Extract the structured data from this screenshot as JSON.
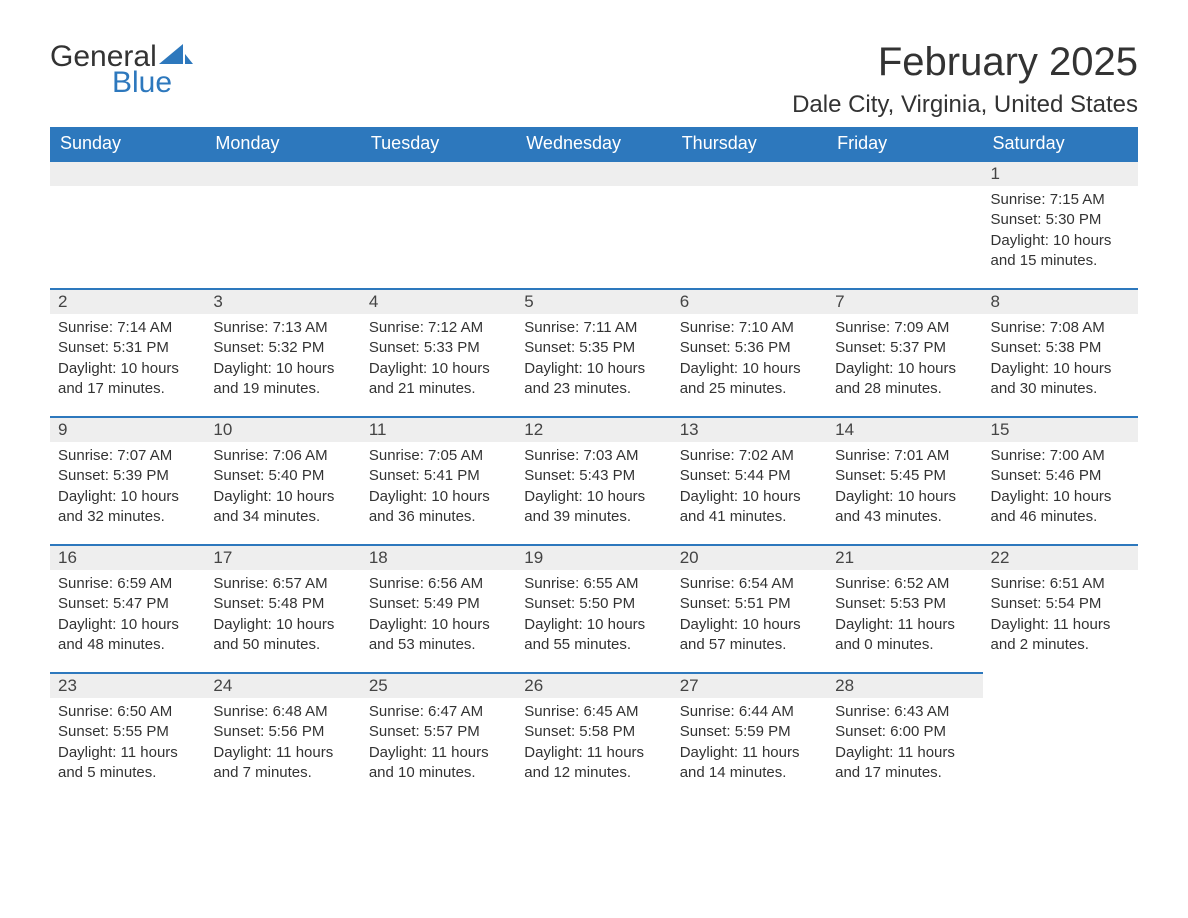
{
  "logo": {
    "general": "General",
    "blue": "Blue",
    "sail_color": "#2d78bd"
  },
  "title": "February 2025",
  "location": "Dale City, Virginia, United States",
  "colors": {
    "header_bg": "#2d78bd",
    "header_text": "#ffffff",
    "daybar_bg": "#eeeeee",
    "daybar_border": "#2d78bd",
    "body_text": "#333333",
    "page_bg": "#ffffff"
  },
  "day_headers": [
    "Sunday",
    "Monday",
    "Tuesday",
    "Wednesday",
    "Thursday",
    "Friday",
    "Saturday"
  ],
  "weeks": [
    [
      null,
      null,
      null,
      null,
      null,
      null,
      {
        "n": "1",
        "sr": "Sunrise: 7:15 AM",
        "ss": "Sunset: 5:30 PM",
        "dl": "Daylight: 10 hours and 15 minutes."
      }
    ],
    [
      {
        "n": "2",
        "sr": "Sunrise: 7:14 AM",
        "ss": "Sunset: 5:31 PM",
        "dl": "Daylight: 10 hours and 17 minutes."
      },
      {
        "n": "3",
        "sr": "Sunrise: 7:13 AM",
        "ss": "Sunset: 5:32 PM",
        "dl": "Daylight: 10 hours and 19 minutes."
      },
      {
        "n": "4",
        "sr": "Sunrise: 7:12 AM",
        "ss": "Sunset: 5:33 PM",
        "dl": "Daylight: 10 hours and 21 minutes."
      },
      {
        "n": "5",
        "sr": "Sunrise: 7:11 AM",
        "ss": "Sunset: 5:35 PM",
        "dl": "Daylight: 10 hours and 23 minutes."
      },
      {
        "n": "6",
        "sr": "Sunrise: 7:10 AM",
        "ss": "Sunset: 5:36 PM",
        "dl": "Daylight: 10 hours and 25 minutes."
      },
      {
        "n": "7",
        "sr": "Sunrise: 7:09 AM",
        "ss": "Sunset: 5:37 PM",
        "dl": "Daylight: 10 hours and 28 minutes."
      },
      {
        "n": "8",
        "sr": "Sunrise: 7:08 AM",
        "ss": "Sunset: 5:38 PM",
        "dl": "Daylight: 10 hours and 30 minutes."
      }
    ],
    [
      {
        "n": "9",
        "sr": "Sunrise: 7:07 AM",
        "ss": "Sunset: 5:39 PM",
        "dl": "Daylight: 10 hours and 32 minutes."
      },
      {
        "n": "10",
        "sr": "Sunrise: 7:06 AM",
        "ss": "Sunset: 5:40 PM",
        "dl": "Daylight: 10 hours and 34 minutes."
      },
      {
        "n": "11",
        "sr": "Sunrise: 7:05 AM",
        "ss": "Sunset: 5:41 PM",
        "dl": "Daylight: 10 hours and 36 minutes."
      },
      {
        "n": "12",
        "sr": "Sunrise: 7:03 AM",
        "ss": "Sunset: 5:43 PM",
        "dl": "Daylight: 10 hours and 39 minutes."
      },
      {
        "n": "13",
        "sr": "Sunrise: 7:02 AM",
        "ss": "Sunset: 5:44 PM",
        "dl": "Daylight: 10 hours and 41 minutes."
      },
      {
        "n": "14",
        "sr": "Sunrise: 7:01 AM",
        "ss": "Sunset: 5:45 PM",
        "dl": "Daylight: 10 hours and 43 minutes."
      },
      {
        "n": "15",
        "sr": "Sunrise: 7:00 AM",
        "ss": "Sunset: 5:46 PM",
        "dl": "Daylight: 10 hours and 46 minutes."
      }
    ],
    [
      {
        "n": "16",
        "sr": "Sunrise: 6:59 AM",
        "ss": "Sunset: 5:47 PM",
        "dl": "Daylight: 10 hours and 48 minutes."
      },
      {
        "n": "17",
        "sr": "Sunrise: 6:57 AM",
        "ss": "Sunset: 5:48 PM",
        "dl": "Daylight: 10 hours and 50 minutes."
      },
      {
        "n": "18",
        "sr": "Sunrise: 6:56 AM",
        "ss": "Sunset: 5:49 PM",
        "dl": "Daylight: 10 hours and 53 minutes."
      },
      {
        "n": "19",
        "sr": "Sunrise: 6:55 AM",
        "ss": "Sunset: 5:50 PM",
        "dl": "Daylight: 10 hours and 55 minutes."
      },
      {
        "n": "20",
        "sr": "Sunrise: 6:54 AM",
        "ss": "Sunset: 5:51 PM",
        "dl": "Daylight: 10 hours and 57 minutes."
      },
      {
        "n": "21",
        "sr": "Sunrise: 6:52 AM",
        "ss": "Sunset: 5:53 PM",
        "dl": "Daylight: 11 hours and 0 minutes."
      },
      {
        "n": "22",
        "sr": "Sunrise: 6:51 AM",
        "ss": "Sunset: 5:54 PM",
        "dl": "Daylight: 11 hours and 2 minutes."
      }
    ],
    [
      {
        "n": "23",
        "sr": "Sunrise: 6:50 AM",
        "ss": "Sunset: 5:55 PM",
        "dl": "Daylight: 11 hours and 5 minutes."
      },
      {
        "n": "24",
        "sr": "Sunrise: 6:48 AM",
        "ss": "Sunset: 5:56 PM",
        "dl": "Daylight: 11 hours and 7 minutes."
      },
      {
        "n": "25",
        "sr": "Sunrise: 6:47 AM",
        "ss": "Sunset: 5:57 PM",
        "dl": "Daylight: 11 hours and 10 minutes."
      },
      {
        "n": "26",
        "sr": "Sunrise: 6:45 AM",
        "ss": "Sunset: 5:58 PM",
        "dl": "Daylight: 11 hours and 12 minutes."
      },
      {
        "n": "27",
        "sr": "Sunrise: 6:44 AM",
        "ss": "Sunset: 5:59 PM",
        "dl": "Daylight: 11 hours and 14 minutes."
      },
      {
        "n": "28",
        "sr": "Sunrise: 6:43 AM",
        "ss": "Sunset: 6:00 PM",
        "dl": "Daylight: 11 hours and 17 minutes."
      },
      null
    ]
  ]
}
